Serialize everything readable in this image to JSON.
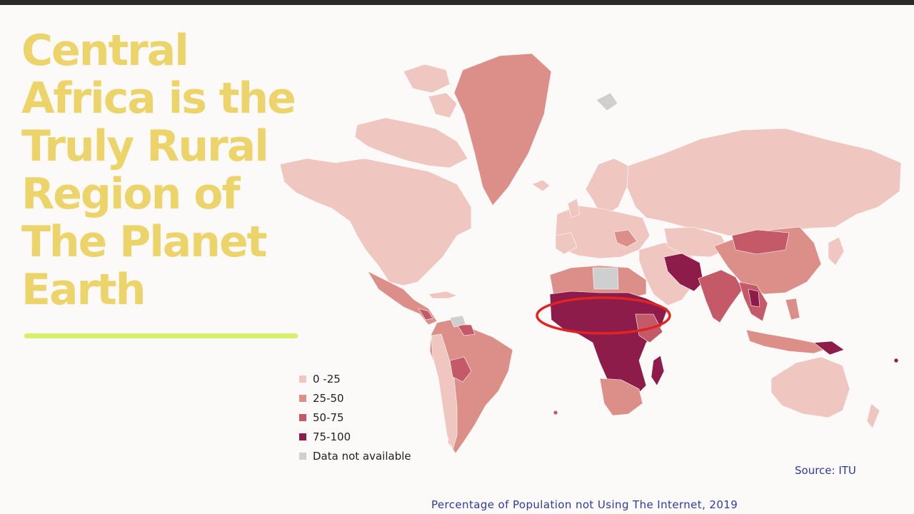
{
  "headline": {
    "lines": [
      "Central",
      "Africa is the",
      "Truly Rural",
      "Region of",
      "The Planet",
      "Earth"
    ]
  },
  "colors": {
    "headline": "#ecd36a",
    "underline": "#d6f06a",
    "bin_0_25": "#f0c6c1",
    "bin_25_50": "#dc8f88",
    "bin_50_75": "#c45a67",
    "bin_75_100": "#8e1c4b",
    "no_data": "#cfcfcf",
    "highlight_ellipse": "#e02424",
    "caption": "#2f3b9c"
  },
  "legend": {
    "items": [
      {
        "label": "0 -25",
        "color": "#f0c6c1"
      },
      {
        "label": "25-50",
        "color": "#dc8f88"
      },
      {
        "label": "50-75",
        "color": "#c45a67"
      },
      {
        "label": "75-100",
        "color": "#8e1c4b"
      },
      {
        "label": "Data not available",
        "color": "#cfcfcf"
      }
    ]
  },
  "map": {
    "type": "choropleth world map",
    "highlight": "red ellipse around Central Africa"
  },
  "source": "Source: ITU",
  "caption": "Percentage of Population not Using The Internet, 2019"
}
